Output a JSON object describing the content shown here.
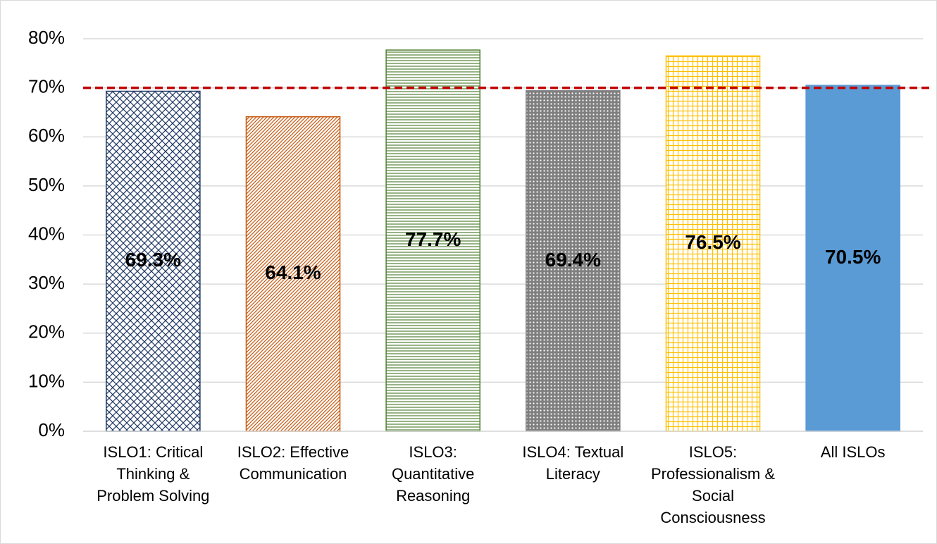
{
  "chart_data": {
    "type": "bar",
    "categories": [
      "ISLO1: Critical Thinking & Problem Solving",
      "ISLO2: Effective Communication",
      "ISLO3: Quantitative Reasoning",
      "ISLO4: Textual Literacy",
      "ISLO5: Professionalism & Social Consciousness",
      "All ISLOs"
    ],
    "values": [
      69.3,
      64.1,
      77.7,
      69.4,
      76.5,
      70.5
    ],
    "value_labels": [
      "69.3%",
      "64.1%",
      "77.7%",
      "69.4%",
      "76.5%",
      "70.5%"
    ],
    "colors": [
      "#1f3864",
      "#c55a11",
      "#538135",
      "#7f7f7f",
      "#ffc000",
      "#5b9bd5"
    ],
    "patterns": [
      "crosshatch",
      "diagonal",
      "horizontal",
      "dots",
      "grid",
      "solid"
    ],
    "ylim": [
      0,
      80
    ],
    "yticks": [
      {
        "value": 0,
        "label": "0%"
      },
      {
        "value": 10,
        "label": "10%"
      },
      {
        "value": 20,
        "label": "20%"
      },
      {
        "value": 30,
        "label": "30%"
      },
      {
        "value": 40,
        "label": "40%"
      },
      {
        "value": 50,
        "label": "50%"
      },
      {
        "value": 60,
        "label": "60%"
      },
      {
        "value": 70,
        "label": "70%"
      },
      {
        "value": 80,
        "label": "80%"
      }
    ],
    "grid": true,
    "reference_line": {
      "value": 70,
      "color": "#c00000"
    }
  }
}
